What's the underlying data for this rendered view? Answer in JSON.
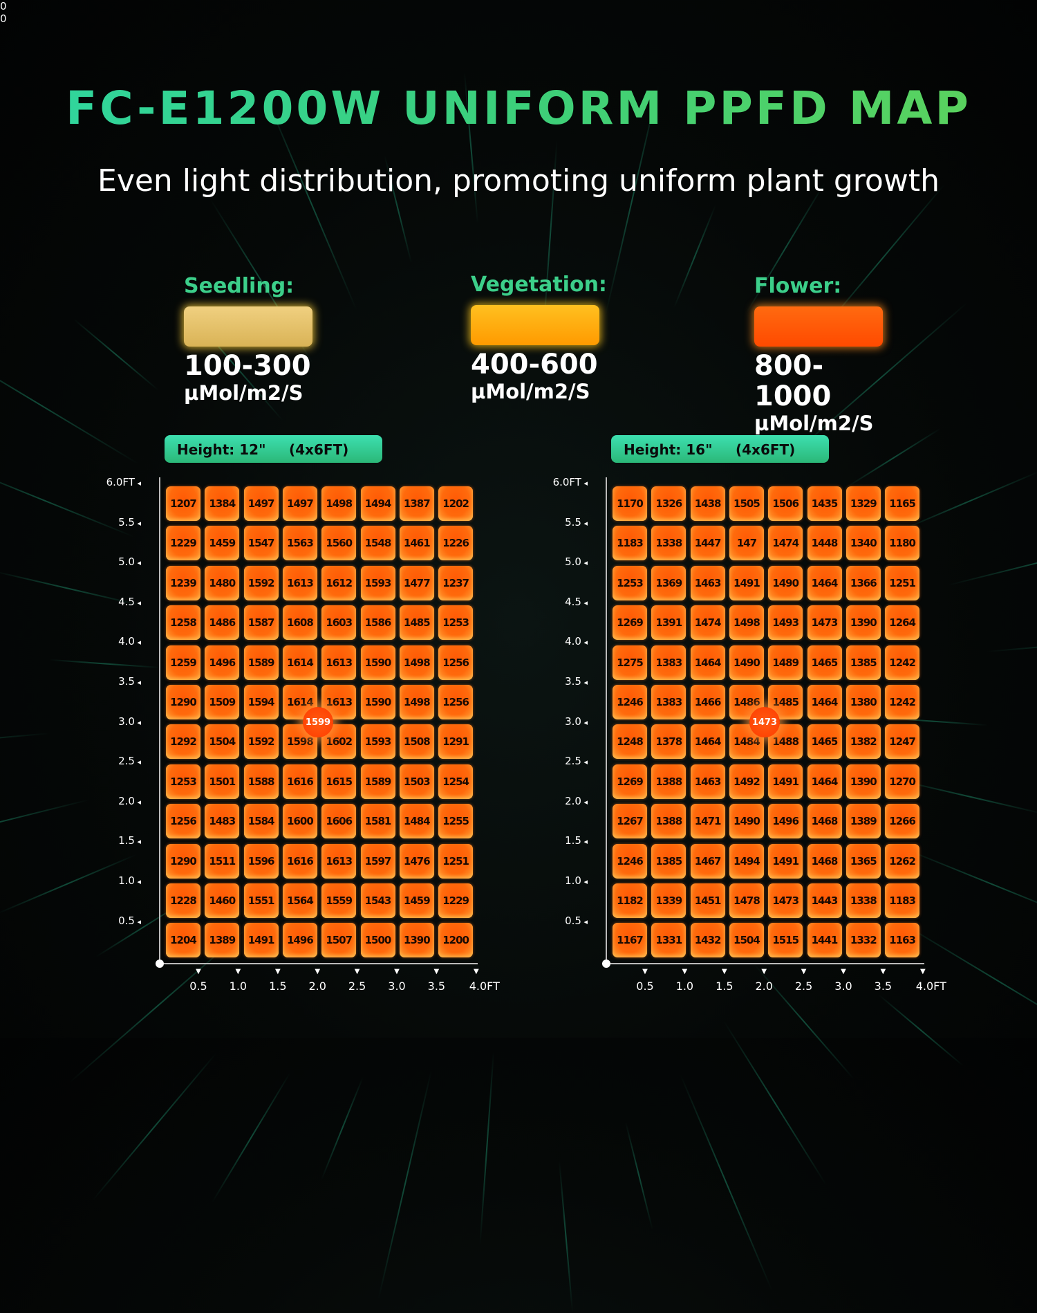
{
  "title": "FC-E1200W UNIFORM PPFD MAP",
  "subtitle": "Even light distribution, promoting uniform plant growth",
  "legend": [
    {
      "label": "Seedling:",
      "range": "100-300",
      "unit": "µMol/m2/S",
      "color": "#e8c56a"
    },
    {
      "label": "Vegetation:",
      "range": "400-600",
      "unit": "µMol/m2/S",
      "color": "#ffaa10"
    },
    {
      "label": "Flower:",
      "range": "800-1000",
      "unit": "µMol/m2/S",
      "color": "#ff5a05"
    }
  ],
  "chart_data": [
    {
      "type": "heatmap",
      "height_label": "Height: 12\"",
      "area_label": "(4x6FT)",
      "center_value": "1599",
      "y_ticks": [
        "6.0FT",
        "5.5",
        "5.0",
        "4.5",
        "4.0",
        "3.5",
        "3.0",
        "2.5",
        "2.0",
        "1.5",
        "1.0",
        "0.5",
        "0"
      ],
      "x_ticks": [
        "0.5",
        "1.0",
        "1.5",
        "2.0",
        "2.5",
        "3.0",
        "3.5",
        "4.0FT"
      ],
      "rows": [
        [
          1207,
          1384,
          1497,
          1497,
          1498,
          1494,
          1387,
          1202
        ],
        [
          1229,
          1459,
          1547,
          1563,
          1560,
          1548,
          1461,
          1226
        ],
        [
          1239,
          1480,
          1592,
          1613,
          1612,
          1593,
          1477,
          1237
        ],
        [
          1258,
          1486,
          1587,
          1608,
          1603,
          1586,
          1485,
          1253
        ],
        [
          1259,
          1496,
          1589,
          1614,
          1613,
          1590,
          1498,
          1256
        ],
        [
          1290,
          1509,
          1594,
          1614,
          1613,
          1590,
          1498,
          1256
        ],
        [
          1292,
          1504,
          1592,
          1598,
          1602,
          1593,
          1508,
          1291
        ],
        [
          1253,
          1501,
          1588,
          1616,
          1615,
          1589,
          1503,
          1254
        ],
        [
          1256,
          1483,
          1584,
          1600,
          1606,
          1581,
          1484,
          1255
        ],
        [
          1290,
          1511,
          1596,
          1616,
          1613,
          1597,
          1476,
          1251
        ],
        [
          1228,
          1460,
          1551,
          1564,
          1559,
          1543,
          1459,
          1229
        ],
        [
          1204,
          1389,
          1491,
          1496,
          1507,
          1500,
          1390,
          1200
        ]
      ]
    },
    {
      "type": "heatmap",
      "height_label": "Height: 16\"",
      "area_label": "(4x6FT)",
      "center_value": "1473",
      "y_ticks": [
        "6.0FT",
        "5.5",
        "5.0",
        "4.5",
        "4.0",
        "3.5",
        "3.0",
        "2.5",
        "2.0",
        "1.5",
        "1.0",
        "0.5",
        "0"
      ],
      "x_ticks": [
        "0.5",
        "1.0",
        "1.5",
        "2.0",
        "2.5",
        "3.0",
        "3.5",
        "4.0FT"
      ],
      "rows": [
        [
          1170,
          1326,
          1438,
          1505,
          1506,
          1435,
          1329,
          1165
        ],
        [
          1183,
          1338,
          1447,
          147,
          1474,
          1448,
          1340,
          1180
        ],
        [
          1253,
          1369,
          1463,
          1491,
          1490,
          1464,
          1366,
          1251
        ],
        [
          1269,
          1391,
          1474,
          1498,
          1493,
          1473,
          1390,
          1264
        ],
        [
          1275,
          1383,
          1464,
          1490,
          1489,
          1465,
          1385,
          1242
        ],
        [
          1246,
          1383,
          1466,
          1486,
          1485,
          1464,
          1380,
          1242
        ],
        [
          1248,
          1378,
          1464,
          1484,
          1488,
          1465,
          1382,
          1247
        ],
        [
          1269,
          1388,
          1463,
          1492,
          1491,
          1464,
          1390,
          1270
        ],
        [
          1267,
          1388,
          1471,
          1490,
          1496,
          1468,
          1389,
          1266
        ],
        [
          1246,
          1385,
          1467,
          1494,
          1491,
          1468,
          1365,
          1262
        ],
        [
          1182,
          1339,
          1451,
          1478,
          1473,
          1443,
          1338,
          1183
        ],
        [
          1167,
          1331,
          1432,
          1504,
          1515,
          1441,
          1332,
          1163
        ]
      ]
    }
  ]
}
